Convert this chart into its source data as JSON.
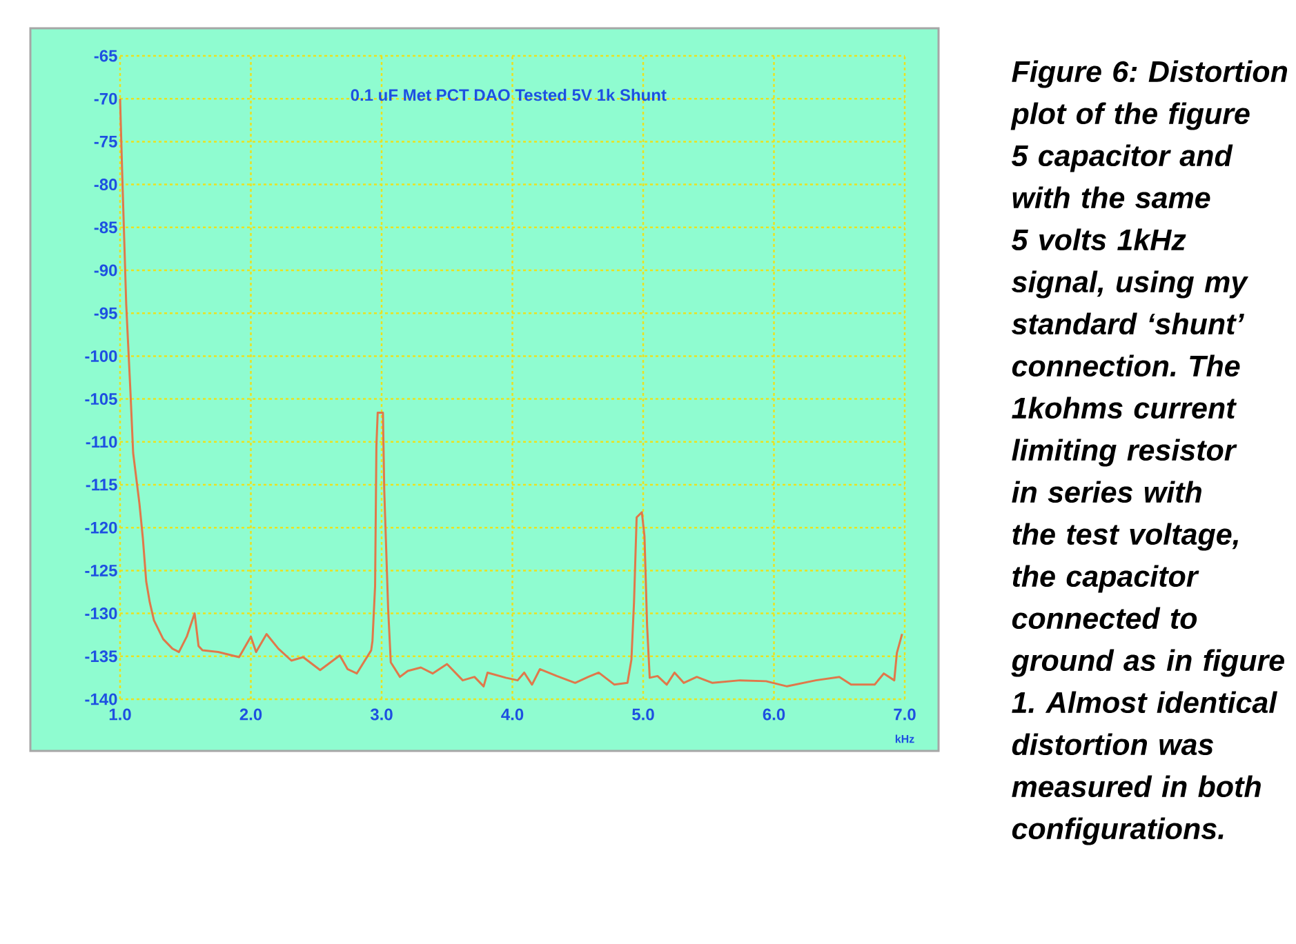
{
  "chart_data": {
    "type": "line",
    "title": "0.1 uF Met PCT DAO Tested 5V 1k Shunt",
    "xlabel": "kHz",
    "annotations": [
      "Figure 6: Distortion plot of the figure 5 capacitor and with the same 5 volts 1kHz signal, using my standard ‘shunt’ connection. The 1kohms current limiting resistor in series with the test voltage, the capacitor connected to ground as in figure 1. Almost identical distortion was measured in both configurations."
    ],
    "color": "#e0784a",
    "x": [
      1.0,
      1.016,
      1.047,
      1.079,
      1.1,
      1.148,
      1.174,
      1.2,
      1.227,
      1.259,
      1.33,
      1.4,
      1.45,
      1.51,
      1.57,
      1.6,
      1.63,
      1.75,
      1.91,
      2.0,
      2.04,
      2.12,
      2.21,
      2.31,
      2.4,
      2.53,
      2.68,
      2.74,
      2.81,
      2.92,
      2.93,
      2.95,
      2.96,
      2.97,
      3.01,
      3.02,
      3.05,
      3.07,
      3.14,
      3.2,
      3.3,
      3.39,
      3.5,
      3.62,
      3.71,
      3.78,
      3.81,
      3.95,
      4.04,
      4.09,
      4.15,
      4.21,
      4.34,
      4.48,
      4.58,
      4.66,
      4.78,
      4.88,
      4.91,
      4.93,
      4.95,
      4.99,
      5.01,
      5.03,
      5.05,
      5.11,
      5.18,
      5.24,
      5.31,
      5.41,
      5.53,
      5.74,
      5.94,
      6.1,
      6.32,
      6.5,
      6.59,
      6.77,
      6.84,
      6.92,
      6.94,
      6.98
    ],
    "values": [
      -70.0,
      -78.6,
      -94.0,
      -104.1,
      -111.3,
      -117.2,
      -121.2,
      -126.3,
      -128.7,
      -130.8,
      -133.0,
      -134.1,
      -134.5,
      -132.7,
      -130.0,
      -133.8,
      -134.3,
      -134.5,
      -135.1,
      -132.7,
      -134.5,
      -132.4,
      -134.1,
      -135.5,
      -135.1,
      -136.6,
      -134.9,
      -136.5,
      -137.0,
      -134.3,
      -133.2,
      -126.8,
      -110.5,
      -106.6,
      -106.6,
      -115.6,
      -129.5,
      -135.7,
      -137.4,
      -136.7,
      -136.3,
      -137.0,
      -135.9,
      -137.8,
      -137.4,
      -138.5,
      -136.9,
      -137.5,
      -137.8,
      -136.9,
      -138.3,
      -136.5,
      -137.3,
      -138.1,
      -137.4,
      -136.9,
      -138.3,
      -138.1,
      -135.4,
      -128.7,
      -118.8,
      -118.2,
      -121.0,
      -131.4,
      -137.5,
      -137.3,
      -138.3,
      -136.9,
      -138.1,
      -137.4,
      -138.1,
      -137.8,
      -137.9,
      -138.5,
      -137.8,
      -137.4,
      -138.3,
      -138.3,
      -137.0,
      -137.8,
      -134.6,
      -132.4
    ],
    "xlim": [
      1,
      7
    ],
    "ylim": [
      -140,
      -65
    ],
    "xticks": [
      {
        "value": 1,
        "label": "1.0"
      },
      {
        "value": 2,
        "label": "2.0"
      },
      {
        "value": 3,
        "label": "3.0"
      },
      {
        "value": 4,
        "label": "4.0"
      },
      {
        "value": 5,
        "label": "5.0"
      },
      {
        "value": 6,
        "label": "6.0"
      },
      {
        "value": 7,
        "label": "7.0"
      }
    ],
    "yticks": [
      -65,
      -70,
      -75,
      -80,
      -85,
      -90,
      -95,
      -100,
      -105,
      -110,
      -115,
      -120,
      -125,
      -130,
      -135,
      -140
    ],
    "grid": true
  }
}
